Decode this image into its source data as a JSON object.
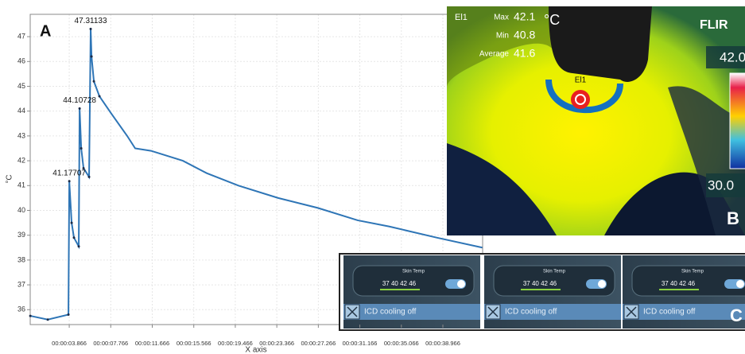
{
  "chart_data": {
    "type": "line",
    "ylabel": "°C",
    "xlabel": "X axis",
    "panel_label": "A",
    "xlim": [
      0.2,
      42.7
    ],
    "ylim": [
      35.4,
      47.9
    ],
    "grid": true,
    "yticks": [
      36,
      37,
      38,
      39,
      40,
      41,
      42,
      43,
      44,
      45,
      46,
      47
    ],
    "xticks": [
      {
        "value": 3.866,
        "label": "00:00:03.866"
      },
      {
        "value": 7.766,
        "label": "00:00:07.766"
      },
      {
        "value": 11.666,
        "label": "00:00:11.666"
      },
      {
        "value": 15.566,
        "label": "00:00:15.566"
      },
      {
        "value": 19.466,
        "label": "00:00:19.466"
      },
      {
        "value": 23.366,
        "label": "00:00:23.366"
      },
      {
        "value": 27.266,
        "label": "00:00:27.266"
      },
      {
        "value": 31.166,
        "label": "00:00:31.166"
      },
      {
        "value": 35.066,
        "label": "00:00:35.066"
      },
      {
        "value": 38.966,
        "label": "00:00:38.966"
      }
    ],
    "series": [
      {
        "color": "#2e75b6",
        "marker_color": "#1b2b48",
        "x": [
          0.21,
          1.85,
          3.79,
          3.87,
          4.09,
          4.31,
          4.76,
          4.84,
          4.99,
          5.21,
          5.73,
          5.88,
          5.96,
          6.18,
          6.7,
          7.82,
          9.31,
          10.06,
          11.55,
          14.54,
          16.78,
          19.76,
          23.49,
          27.22,
          30.96,
          33.94,
          38.42,
          42.67
        ],
        "values": [
          35.75,
          35.6,
          35.8,
          41.17707,
          39.5,
          38.9,
          38.55,
          44.10728,
          42.5,
          41.7,
          41.35,
          47.31133,
          46.2,
          45.2,
          44.6,
          43.9,
          43.0,
          42.5,
          42.4,
          42.0,
          41.5,
          41.0,
          40.5,
          40.1,
          39.6,
          39.35,
          38.9,
          38.5
        ],
        "value_labels": [
          null,
          null,
          null,
          "41.17707",
          null,
          null,
          null,
          "44.10728",
          null,
          null,
          null,
          "47.31133",
          null,
          null,
          null,
          null,
          null,
          null,
          null,
          null,
          null,
          null,
          null,
          null,
          null,
          null,
          null,
          null
        ]
      }
    ]
  },
  "thermal": {
    "panel_label": "B",
    "spot": "El1",
    "marker": "El1",
    "max_label": "Max",
    "max": "42.1",
    "unit": "°C",
    "min_label": "Min",
    "min": "40.8",
    "avg_label": "Average",
    "avg": "41.6",
    "brand": "FLIR",
    "scale_top": "42.0",
    "scale_bottom": "30.0"
  },
  "screens": {
    "panel_label": "C",
    "items": [
      {
        "title": "Skin Temp",
        "scale": "37  40  42  46",
        "button": "ICD cooling off"
      },
      {
        "title": "Skin Temp",
        "scale": "37  40  42  46",
        "button": "ICD cooling off"
      },
      {
        "title": "Skin Temp",
        "scale": "37  40  42  46",
        "button": "ICD cooling off"
      }
    ]
  }
}
